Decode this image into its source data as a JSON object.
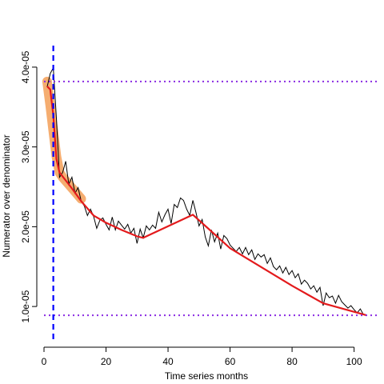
{
  "chart_data": {
    "type": "line",
    "title": "",
    "xlabel": "Time series months",
    "ylabel": "Numerator over denominator",
    "xlim": [
      0,
      105
    ],
    "ylim": [
      5.8e-06,
      4.27e-05
    ],
    "x_ticks": [
      0,
      20,
      40,
      60,
      80,
      100
    ],
    "x_tick_labels": [
      "0",
      "20",
      "40",
      "60",
      "80",
      "100"
    ],
    "y_ticks": [
      1e-05,
      2e-05,
      3e-05,
      4e-05
    ],
    "y_tick_labels": [
      "1.0e-05",
      "2.0e-05",
      "3.0e-05",
      "4.0e-05"
    ],
    "grid": false,
    "colors": {
      "observed": "#000000",
      "trend": "#e31a1c",
      "highlight": "#f4a460",
      "vline": "#0000ff",
      "hline": "#8a2be2"
    },
    "series": [
      {
        "values": [
          {
            "x": 1,
            "y": 3.75e-05
          },
          {
            "x": 2,
            "y": 3.92e-05
          },
          {
            "x": 3,
            "y": 3.99e-05
          },
          {
            "x": 4,
            "y": 3.36e-05
          },
          {
            "x": 5,
            "y": 2.62e-05
          },
          {
            "x": 6,
            "y": 2.68e-05
          },
          {
            "x": 7,
            "y": 2.82e-05
          },
          {
            "x": 8,
            "y": 2.53e-05
          },
          {
            "x": 9,
            "y": 2.62e-05
          },
          {
            "x": 10,
            "y": 2.42e-05
          },
          {
            "x": 11,
            "y": 2.49e-05
          },
          {
            "x": 12,
            "y": 2.32e-05
          },
          {
            "x": 13,
            "y": 2.26e-05
          },
          {
            "x": 14,
            "y": 2.14e-05
          },
          {
            "x": 15,
            "y": 2.22e-05
          },
          {
            "x": 16,
            "y": 2.13e-05
          },
          {
            "x": 17,
            "y": 1.98e-05
          },
          {
            "x": 18,
            "y": 2.08e-05
          },
          {
            "x": 19,
            "y": 2.11e-05
          },
          {
            "x": 20,
            "y": 2.03e-05
          },
          {
            "x": 21,
            "y": 1.96e-05
          },
          {
            "x": 22,
            "y": 2.12e-05
          },
          {
            "x": 23,
            "y": 1.96e-05
          },
          {
            "x": 24,
            "y": 2.07e-05
          },
          {
            "x": 25,
            "y": 2.02e-05
          },
          {
            "x": 26,
            "y": 1.97e-05
          },
          {
            "x": 27,
            "y": 2.03e-05
          },
          {
            "x": 28,
            "y": 1.92e-05
          },
          {
            "x": 29,
            "y": 1.98e-05
          },
          {
            "x": 30,
            "y": 1.79e-05
          },
          {
            "x": 31,
            "y": 1.97e-05
          },
          {
            "x": 32,
            "y": 1.86e-05
          },
          {
            "x": 33,
            "y": 2.01e-05
          },
          {
            "x": 34,
            "y": 1.96e-05
          },
          {
            "x": 35,
            "y": 2.02e-05
          },
          {
            "x": 36,
            "y": 1.98e-05
          },
          {
            "x": 37,
            "y": 2.18e-05
          },
          {
            "x": 38,
            "y": 2.06e-05
          },
          {
            "x": 39,
            "y": 2.15e-05
          },
          {
            "x": 40,
            "y": 2.22e-05
          },
          {
            "x": 41,
            "y": 2.04e-05
          },
          {
            "x": 42,
            "y": 2.28e-05
          },
          {
            "x": 43,
            "y": 2.24e-05
          },
          {
            "x": 44,
            "y": 2.36e-05
          },
          {
            "x": 45,
            "y": 2.33e-05
          },
          {
            "x": 46,
            "y": 2.22e-05
          },
          {
            "x": 47,
            "y": 2.14e-05
          },
          {
            "x": 48,
            "y": 2.33e-05
          },
          {
            "x": 49,
            "y": 2.18e-05
          },
          {
            "x": 50,
            "y": 2.01e-05
          },
          {
            "x": 51,
            "y": 2.09e-05
          },
          {
            "x": 52,
            "y": 1.87e-05
          },
          {
            "x": 53,
            "y": 1.76e-05
          },
          {
            "x": 54,
            "y": 1.96e-05
          },
          {
            "x": 55,
            "y": 1.81e-05
          },
          {
            "x": 56,
            "y": 1.92e-05
          },
          {
            "x": 57,
            "y": 1.72e-05
          },
          {
            "x": 58,
            "y": 1.89e-05
          },
          {
            "x": 59,
            "y": 1.85e-05
          },
          {
            "x": 60,
            "y": 1.77e-05
          },
          {
            "x": 61,
            "y": 1.73e-05
          },
          {
            "x": 62,
            "y": 1.69e-05
          },
          {
            "x": 63,
            "y": 1.74e-05
          },
          {
            "x": 64,
            "y": 1.66e-05
          },
          {
            "x": 65,
            "y": 1.74e-05
          },
          {
            "x": 66,
            "y": 1.65e-05
          },
          {
            "x": 67,
            "y": 1.71e-05
          },
          {
            "x": 68,
            "y": 1.59e-05
          },
          {
            "x": 69,
            "y": 1.66e-05
          },
          {
            "x": 70,
            "y": 1.62e-05
          },
          {
            "x": 71,
            "y": 1.65e-05
          },
          {
            "x": 72,
            "y": 1.54e-05
          },
          {
            "x": 73,
            "y": 1.61e-05
          },
          {
            "x": 74,
            "y": 1.5e-05
          },
          {
            "x": 75,
            "y": 1.46e-05
          },
          {
            "x": 76,
            "y": 1.51e-05
          },
          {
            "x": 77,
            "y": 1.42e-05
          },
          {
            "x": 78,
            "y": 1.49e-05
          },
          {
            "x": 79,
            "y": 1.4e-05
          },
          {
            "x": 80,
            "y": 1.45e-05
          },
          {
            "x": 81,
            "y": 1.36e-05
          },
          {
            "x": 82,
            "y": 1.41e-05
          },
          {
            "x": 83,
            "y": 1.28e-05
          },
          {
            "x": 84,
            "y": 1.33e-05
          },
          {
            "x": 85,
            "y": 1.29e-05
          },
          {
            "x": 86,
            "y": 1.22e-05
          },
          {
            "x": 87,
            "y": 1.26e-05
          },
          {
            "x": 88,
            "y": 1.18e-05
          },
          {
            "x": 89,
            "y": 1.24e-05
          },
          {
            "x": 90,
            "y": 1.01e-05
          },
          {
            "x": 91,
            "y": 1.17e-05
          },
          {
            "x": 92,
            "y": 1.11e-05
          },
          {
            "x": 93,
            "y": 1.13e-05
          },
          {
            "x": 94,
            "y": 1.04e-05
          },
          {
            "x": 95,
            "y": 1.14e-05
          },
          {
            "x": 96,
            "y": 1.06e-05
          },
          {
            "x": 97,
            "y": 1.02e-05
          },
          {
            "x": 98,
            "y": 9.8e-06
          },
          {
            "x": 99,
            "y": 1.01e-05
          },
          {
            "x": 100,
            "y": 9.6e-06
          },
          {
            "x": 101,
            "y": 9.2e-06
          },
          {
            "x": 102,
            "y": 9.7e-06
          },
          {
            "x": 103,
            "y": 9e-06
          },
          {
            "x": 104,
            "y": 8.9e-06
          }
        ]
      },
      {
        "values": [
          {
            "x": 1,
            "y": 3.76e-05
          },
          {
            "x": 2,
            "y": 3.72e-05
          },
          {
            "x": 3,
            "y": 3.4e-05
          },
          {
            "x": 4,
            "y": 2.85e-05
          },
          {
            "x": 5,
            "y": 2.68e-05
          },
          {
            "x": 7,
            "y": 2.58e-05
          },
          {
            "x": 9,
            "y": 2.48e-05
          },
          {
            "x": 12,
            "y": 2.32e-05
          },
          {
            "x": 16,
            "y": 2.14e-05
          },
          {
            "x": 20,
            "y": 2.05e-05
          },
          {
            "x": 25,
            "y": 1.96e-05
          },
          {
            "x": 30,
            "y": 1.88e-05
          },
          {
            "x": 32,
            "y": 1.86e-05
          },
          {
            "x": 48,
            "y": 2.15e-05
          },
          {
            "x": 60,
            "y": 1.73e-05
          },
          {
            "x": 80,
            "y": 1.26e-05
          },
          {
            "x": 90,
            "y": 1.04e-05
          },
          {
            "x": 104,
            "y": 8.9e-06
          }
        ]
      },
      {
        "values": [
          {
            "x": 1,
            "y": 3.82e-05
          },
          {
            "x": 2,
            "y": 3.52e-05
          },
          {
            "x": 3,
            "y": 3.2e-05
          },
          {
            "x": 4,
            "y": 2.88e-05
          },
          {
            "x": 5,
            "y": 2.68e-05
          },
          {
            "x": 6,
            "y": 2.62e-05
          },
          {
            "x": 8,
            "y": 2.53e-05
          },
          {
            "x": 10,
            "y": 2.44e-05
          },
          {
            "x": 12,
            "y": 2.35e-05
          }
        ]
      }
    ],
    "vlines": [
      3
    ],
    "hlines": [
      3.82e-05,
      8.9e-06
    ]
  }
}
